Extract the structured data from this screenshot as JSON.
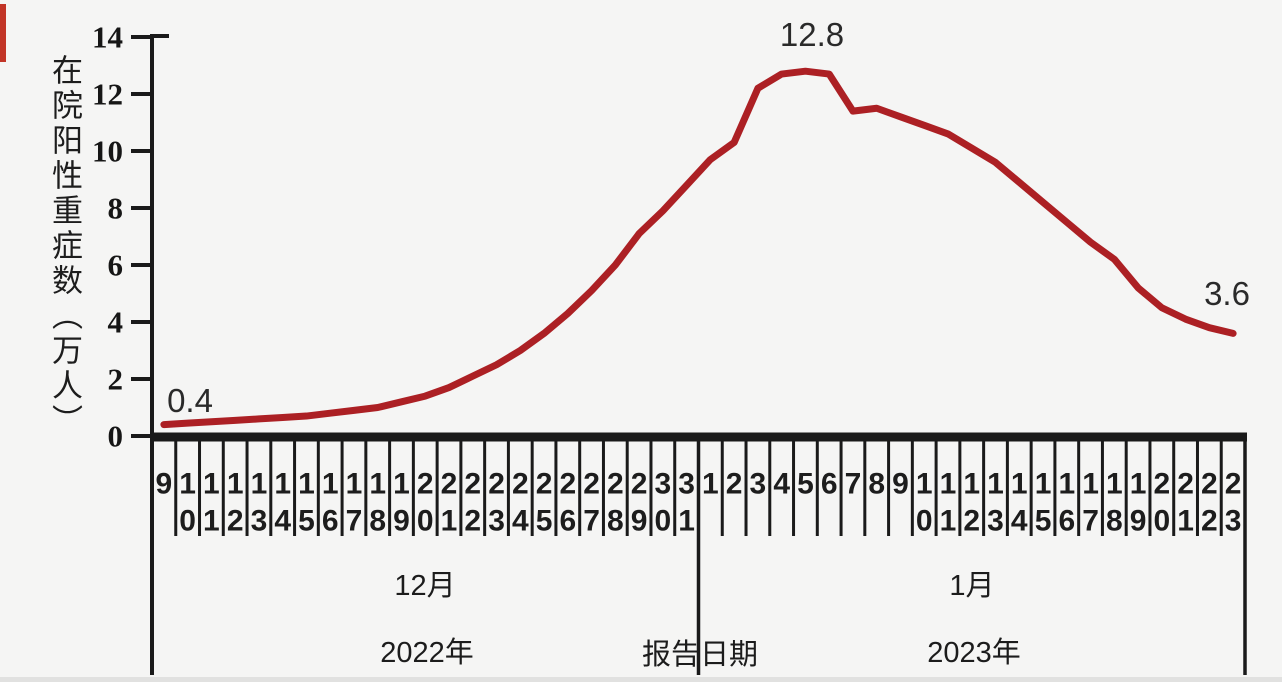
{
  "page": {
    "background_color": "#f5f5f4",
    "edge_artifact_color": "#c23527"
  },
  "chart_data": {
    "type": "line",
    "title": "",
    "ylabel": "在院阳性重症数（万人）",
    "xlabel": "报告日期",
    "ylim": [
      0,
      14
    ],
    "y_ticks": [
      0,
      2,
      4,
      6,
      8,
      10,
      12,
      14
    ],
    "grid": false,
    "legend_position": "none",
    "line_color": "#ac2024",
    "axis_color": "#1a1a1a",
    "categories": [
      "9",
      "10",
      "11",
      "12",
      "13",
      "14",
      "15",
      "16",
      "17",
      "18",
      "19",
      "20",
      "21",
      "22",
      "23",
      "24",
      "25",
      "26",
      "27",
      "28",
      "29",
      "30",
      "31",
      "1",
      "2",
      "3",
      "4",
      "5",
      "6",
      "7",
      "8",
      "9",
      "10",
      "11",
      "12",
      "13",
      "14",
      "15",
      "16",
      "17",
      "18",
      "19",
      "20",
      "21",
      "22",
      "23"
    ],
    "series": [
      {
        "name": "在院阳性重症数",
        "values": [
          0.4,
          0.45,
          0.5,
          0.55,
          0.6,
          0.65,
          0.7,
          0.8,
          0.9,
          1.0,
          1.2,
          1.4,
          1.7,
          2.1,
          2.5,
          3.0,
          3.6,
          4.3,
          5.1,
          6.0,
          7.1,
          7.9,
          8.8,
          9.7,
          10.3,
          12.2,
          12.7,
          12.8,
          12.7,
          11.4,
          11.5,
          11.2,
          10.9,
          10.6,
          10.1,
          9.6,
          8.9,
          8.2,
          7.5,
          6.8,
          6.2,
          5.2,
          4.5,
          4.1,
          3.8,
          3.6
        ]
      }
    ],
    "annotations": {
      "start": "0.4",
      "peak": "12.8",
      "end": "3.6"
    },
    "months": [
      {
        "month_label": "12月",
        "year_label": "2022年"
      },
      {
        "month_label": "1月",
        "year_label": "2023年"
      }
    ]
  }
}
